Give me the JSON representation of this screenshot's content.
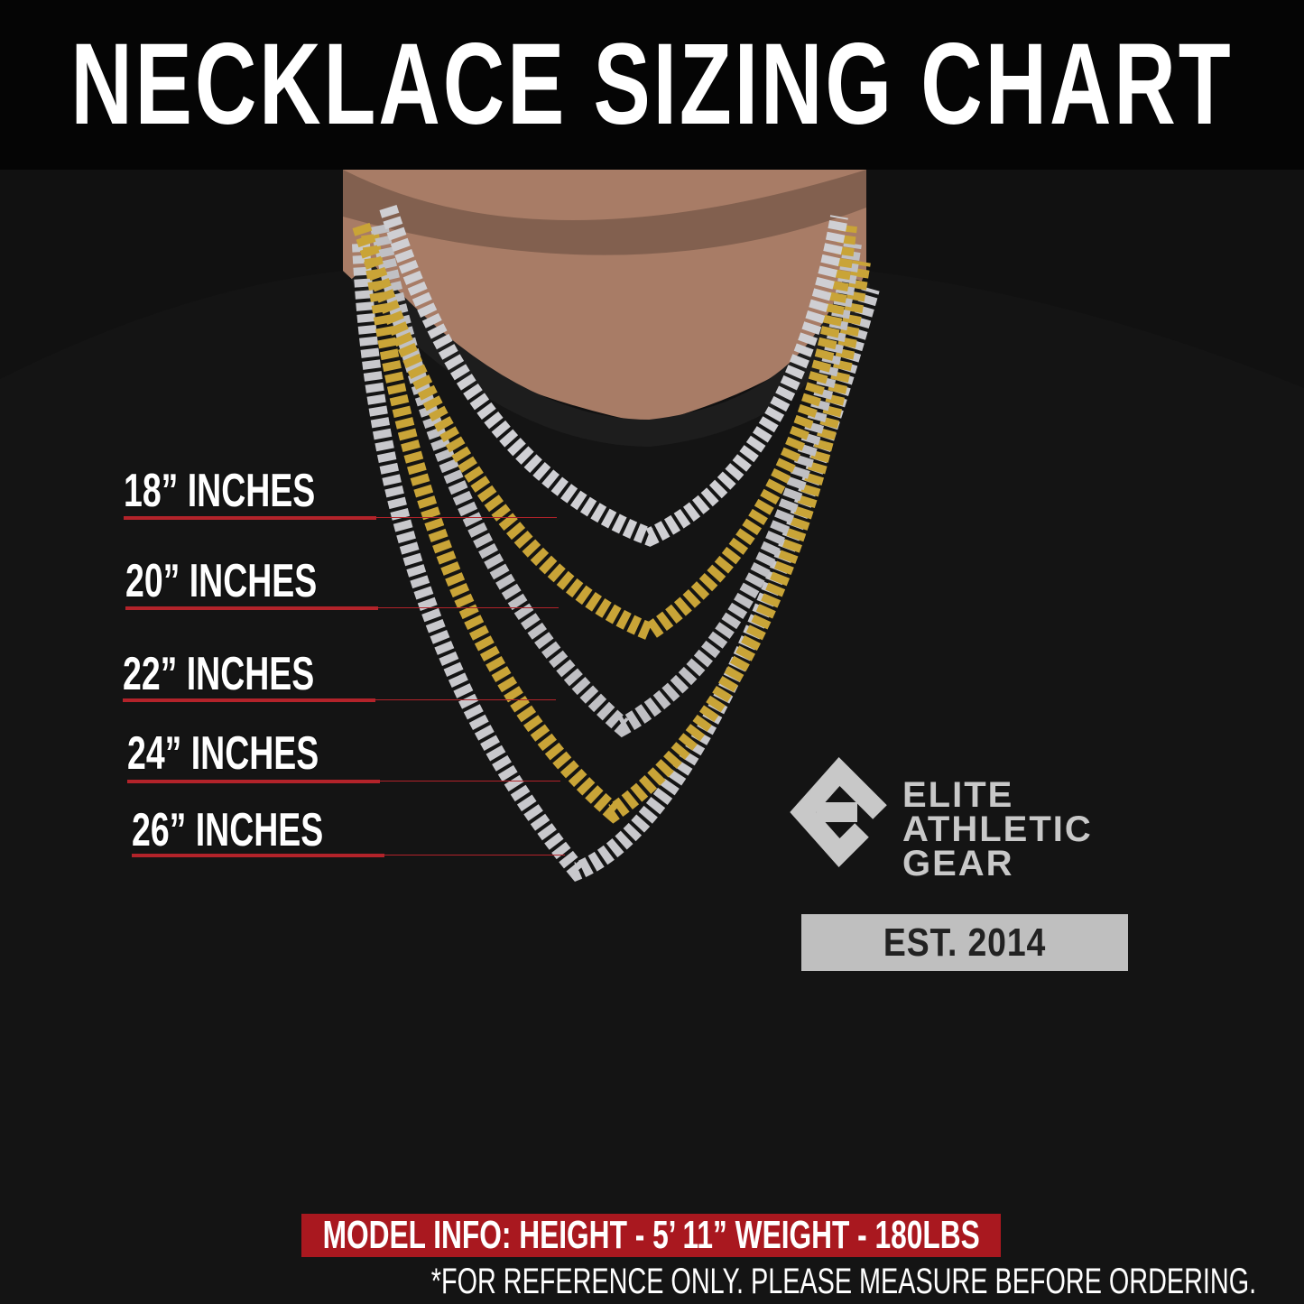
{
  "header": {
    "title": "NECKLACE SIZING CHART"
  },
  "sizes": [
    {
      "label": "18” INCHES",
      "chain_color": "silver"
    },
    {
      "label": "20” INCHES",
      "chain_color": "gold"
    },
    {
      "label": "22” INCHES",
      "chain_color": "silver"
    },
    {
      "label": "24” INCHES",
      "chain_color": "gold"
    },
    {
      "label": "26” INCHES",
      "chain_color": "silver"
    }
  ],
  "logo": {
    "line1": "ELITE",
    "line2": "ATHLETIC",
    "line3": "GEAR",
    "est": "EST. 2014"
  },
  "footer": {
    "model_info": "MODEL INFO: HEIGHT - 5’ 11”  WEIGHT - 180LBS",
    "note": "*FOR REFERENCE ONLY. PLEASE MEASURE BEFORE ORDERING."
  },
  "colors": {
    "accent_red": "#a9181f",
    "gold": "#c9a437",
    "silver": "#c8c8cc"
  }
}
